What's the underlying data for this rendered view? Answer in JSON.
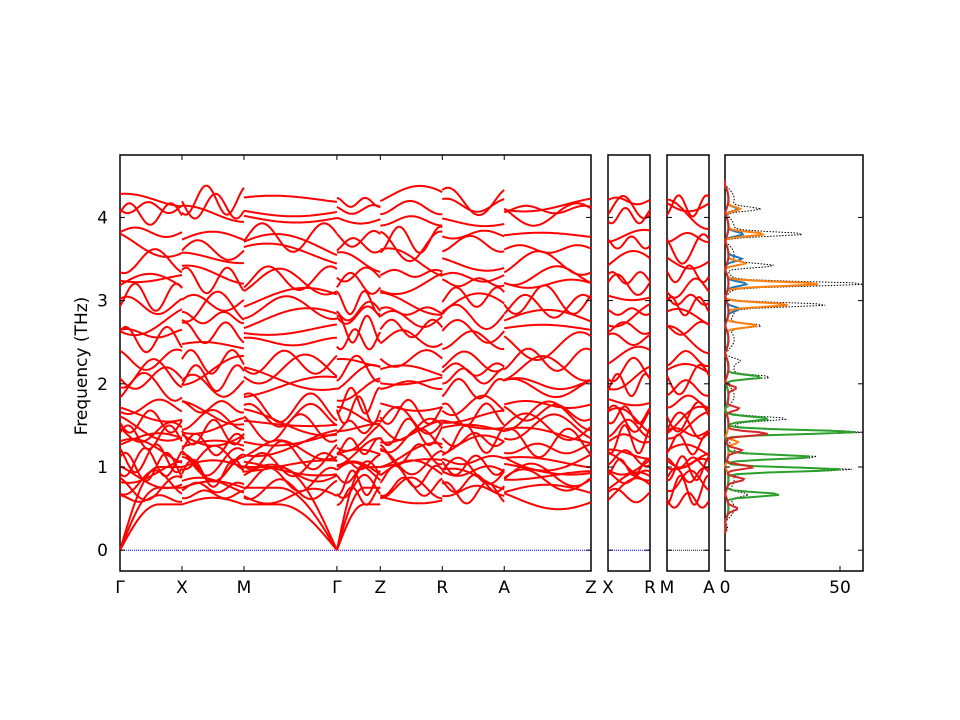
{
  "chart_data": [
    {
      "type": "line",
      "panel": "band-structure-main",
      "title": "",
      "xlabel": "",
      "ylabel": "Frequency (THz)",
      "ylim": [
        -0.25,
        4.75
      ],
      "yticks": [
        0,
        1,
        2,
        3,
        4
      ],
      "x_ticks": [
        "Γ",
        "X",
        "M",
        "Γ",
        "Z",
        "R",
        "A",
        "Z"
      ],
      "x_tick_pos": [
        0,
        1,
        2,
        3.5,
        4.2,
        5.2,
        6.2,
        7.6
      ],
      "xlim": [
        0,
        7.6
      ],
      "series": [
        {
          "color": "#ff0000",
          "kind": "phonon branches"
        }
      ],
      "zero_line_color": "#0000ff"
    },
    {
      "type": "line",
      "panel": "band-structure-x-r",
      "x_ticks": [
        "X",
        "R"
      ],
      "ylim": [
        -0.25,
        4.75
      ],
      "series": [
        {
          "color": "#ff0000",
          "kind": "phonon branches"
        }
      ]
    },
    {
      "type": "line",
      "panel": "band-structure-m-a",
      "x_ticks": [
        "M",
        "A"
      ],
      "ylim": [
        -0.25,
        4.75
      ],
      "series": [
        {
          "color": "#ff0000",
          "kind": "phonon branches"
        }
      ]
    },
    {
      "type": "line",
      "panel": "density-of-states",
      "xlim": [
        0,
        60
      ],
      "xticks": [
        0,
        50
      ],
      "ylim": [
        -0.25,
        4.75
      ],
      "series": [
        {
          "color": "#000000",
          "style": "dotted",
          "peaks": [
            [
              0.67,
              10
            ],
            [
              0.97,
              54
            ],
            [
              1.12,
              38
            ],
            [
              1.42,
              60
            ],
            [
              1.58,
              24
            ],
            [
              2.08,
              18
            ],
            [
              2.28,
              4
            ],
            [
              2.7,
              16
            ],
            [
              2.95,
              42
            ],
            [
              3.2,
              60
            ],
            [
              3.42,
              20
            ],
            [
              3.8,
              32
            ],
            [
              4.1,
              14
            ]
          ]
        },
        {
          "color": "#1f77b4",
          "style": "solid",
          "peaks": [
            [
              2.9,
              5
            ],
            [
              3.2,
              8
            ],
            [
              3.5,
              6
            ],
            [
              3.8,
              7
            ],
            [
              4.1,
              5
            ]
          ]
        },
        {
          "color": "#ff7f0e",
          "style": "solid",
          "peaks": [
            [
              1.3,
              5
            ],
            [
              2.7,
              14
            ],
            [
              2.95,
              27
            ],
            [
              3.2,
              40
            ],
            [
              3.45,
              8
            ],
            [
              3.8,
              16
            ],
            [
              4.1,
              6
            ]
          ]
        },
        {
          "color": "#2ca02c",
          "style": "solid",
          "peaks": [
            [
              0.67,
              24
            ],
            [
              0.97,
              50
            ],
            [
              1.12,
              37
            ],
            [
              1.42,
              56
            ],
            [
              1.58,
              18
            ],
            [
              2.08,
              15
            ]
          ]
        },
        {
          "color": "#d62728",
          "style": "solid",
          "peaks": [
            [
              0.5,
              4
            ],
            [
              0.85,
              7
            ],
            [
              1.0,
              12
            ],
            [
              1.2,
              6
            ],
            [
              1.4,
              18
            ],
            [
              1.7,
              6
            ],
            [
              1.95,
              4
            ]
          ]
        }
      ]
    }
  ]
}
